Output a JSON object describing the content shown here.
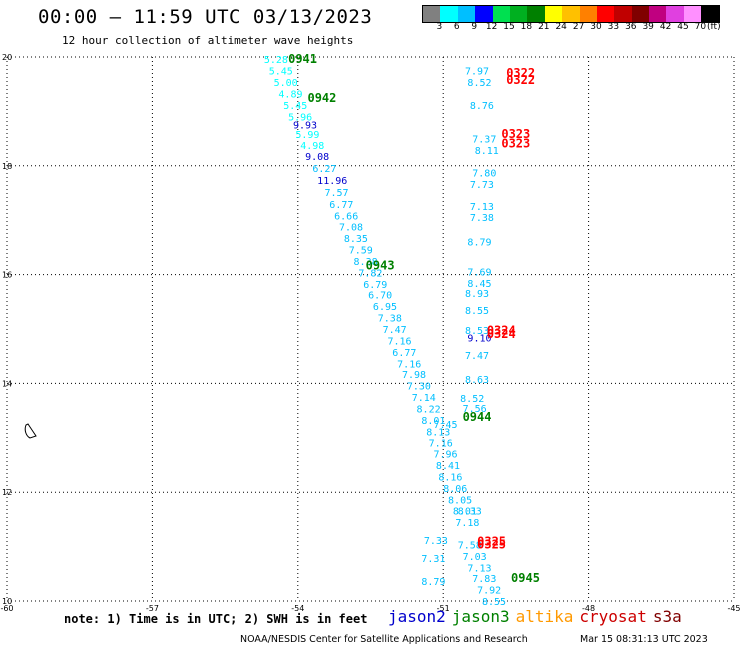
{
  "header": {
    "title": "00:00 – 11:59 UTC 03/13/2023",
    "subtitle": "12 hour collection of altimeter wave heights"
  },
  "color_scale": {
    "colors": [
      "#808080",
      "#00ffff",
      "#00bfff",
      "#0000ff",
      "#00e050",
      "#00b020",
      "#008000",
      "#ffff00",
      "#ffc000",
      "#ff8000",
      "#ff0000",
      "#c00000",
      "#800000",
      "#c00080",
      "#e040e0",
      "#ff90ff",
      "#000000"
    ],
    "labels": [
      "3",
      "6",
      "9",
      "12",
      "15",
      "18",
      "21",
      "24",
      "27",
      "30",
      "33",
      "36",
      "39",
      "42",
      "45",
      "70",
      "(ft)"
    ]
  },
  "chart_data": {
    "type": "scatter",
    "title": "12 hour collection of altimeter wave heights",
    "xlim": [
      -60,
      -45
    ],
    "ylim": [
      10,
      20
    ],
    "x_ticks": [
      "-60",
      "-57",
      "-54",
      "-51",
      "-48",
      "-45"
    ],
    "y_ticks": [
      "20",
      "18",
      "16",
      "14",
      "12",
      "10"
    ],
    "grid": true,
    "unit": "ft",
    "series": [
      {
        "name": "jason2",
        "color": "#00ffff",
        "points": [
          {
            "x": -54.7,
            "y": 19.96,
            "v": "5.28"
          },
          {
            "x": -54.6,
            "y": 19.75,
            "v": "5.45"
          },
          {
            "x": -54.5,
            "y": 19.54,
            "v": "5.00"
          },
          {
            "x": -54.4,
            "y": 19.33,
            "v": "4.89"
          },
          {
            "x": -54.3,
            "y": 19.12,
            "v": "5.45"
          },
          {
            "x": -54.2,
            "y": 18.91,
            "v": "5.96"
          },
          {
            "x": -54.05,
            "y": 18.58,
            "v": "5.99"
          },
          {
            "x": -53.95,
            "y": 18.38,
            "v": "4.98"
          }
        ]
      },
      {
        "name": "jason2-high",
        "color": "#0000cc",
        "points": [
          {
            "x": -54.1,
            "y": 18.76,
            "v": "9.93"
          },
          {
            "x": -53.85,
            "y": 18.18,
            "v": "9.08"
          },
          {
            "x": -53.6,
            "y": 17.74,
            "v": "11.96"
          },
          {
            "x": -50.5,
            "y": 14.84,
            "v": "9.10"
          }
        ]
      },
      {
        "name": "jason3",
        "color": "#00bfff",
        "points": [
          {
            "x": -53.7,
            "y": 17.96,
            "v": "6.27"
          },
          {
            "x": -53.45,
            "y": 17.52,
            "v": "7.57"
          },
          {
            "x": -53.35,
            "y": 17.3,
            "v": "6.77"
          },
          {
            "x": -53.25,
            "y": 17.09,
            "v": "6.66"
          },
          {
            "x": -53.15,
            "y": 16.88,
            "v": "7.08"
          },
          {
            "x": -53.05,
            "y": 16.67,
            "v": "8.35"
          },
          {
            "x": -52.95,
            "y": 16.46,
            "v": "7.59"
          },
          {
            "x": -52.85,
            "y": 16.25,
            "v": "8.38"
          },
          {
            "x": -52.75,
            "y": 16.04,
            "v": "7.82"
          },
          {
            "x": -52.65,
            "y": 15.83,
            "v": "6.79"
          },
          {
            "x": -52.55,
            "y": 15.63,
            "v": "6.70"
          },
          {
            "x": -52.45,
            "y": 15.42,
            "v": "6.95"
          },
          {
            "x": -52.35,
            "y": 15.21,
            "v": "7.38"
          },
          {
            "x": -52.25,
            "y": 15.0,
            "v": "7.47"
          },
          {
            "x": -52.15,
            "y": 14.79,
            "v": "7.16"
          },
          {
            "x": -52.05,
            "y": 14.58,
            "v": "6.77"
          },
          {
            "x": -51.95,
            "y": 14.37,
            "v": "7.16"
          },
          {
            "x": -51.85,
            "y": 14.17,
            "v": "7.98"
          },
          {
            "x": -51.75,
            "y": 13.96,
            "v": "7.30"
          },
          {
            "x": -51.65,
            "y": 13.75,
            "v": "7.14"
          },
          {
            "x": -51.55,
            "y": 13.54,
            "v": "8.22"
          },
          {
            "x": -51.45,
            "y": 13.33,
            "v": "8.01"
          },
          {
            "x": -51.35,
            "y": 13.12,
            "v": "8.13"
          },
          {
            "x": -51.3,
            "y": 12.91,
            "v": "7.16"
          },
          {
            "x": -51.2,
            "y": 12.71,
            "v": "7.96"
          },
          {
            "x": -51.15,
            "y": 12.5,
            "v": "8.41"
          },
          {
            "x": -51.1,
            "y": 12.29,
            "v": "8.16"
          },
          {
            "x": -51.0,
            "y": 12.08,
            "v": "8.06"
          },
          {
            "x": -50.9,
            "y": 11.87,
            "v": "8.05"
          },
          {
            "x": -50.8,
            "y": 11.66,
            "v": "8.01"
          },
          {
            "x": -50.75,
            "y": 11.45,
            "v": "7.18"
          },
          {
            "x": -50.7,
            "y": 11.04,
            "v": "7.58"
          },
          {
            "x": -50.6,
            "y": 10.83,
            "v": "7.03"
          },
          {
            "x": -50.5,
            "y": 10.62,
            "v": "7.13"
          },
          {
            "x": -50.4,
            "y": 10.42,
            "v": "7.83"
          },
          {
            "x": -50.3,
            "y": 10.21,
            "v": "7.92"
          },
          {
            "x": -50.2,
            "y": 10.0,
            "v": "8.55"
          },
          {
            "x": -51.4,
            "y": 11.12,
            "v": "7.33"
          },
          {
            "x": -51.45,
            "y": 10.79,
            "v": "7.31"
          },
          {
            "x": -51.45,
            "y": 10.37,
            "v": "8.79"
          },
          {
            "x": -50.55,
            "y": 19.75,
            "v": "7.97"
          },
          {
            "x": -50.5,
            "y": 19.54,
            "v": "8.52"
          },
          {
            "x": -50.45,
            "y": 19.12,
            "v": "8.76"
          },
          {
            "x": -50.4,
            "y": 18.5,
            "v": "7.37"
          },
          {
            "x": -50.35,
            "y": 18.29,
            "v": "8.11"
          },
          {
            "x": -50.4,
            "y": 17.88,
            "v": "7.80"
          },
          {
            "x": -50.45,
            "y": 17.67,
            "v": "7.73"
          },
          {
            "x": -50.45,
            "y": 17.26,
            "v": "7.13"
          },
          {
            "x": -50.45,
            "y": 17.06,
            "v": "7.38"
          },
          {
            "x": -50.5,
            "y": 16.61,
            "v": "8.79"
          },
          {
            "x": -50.5,
            "y": 16.06,
            "v": "7.69"
          },
          {
            "x": -50.5,
            "y": 15.85,
            "v": "8.45"
          },
          {
            "x": -50.55,
            "y": 15.66,
            "v": "8.93"
          },
          {
            "x": -50.55,
            "y": 15.35,
            "v": "8.55"
          },
          {
            "x": -50.55,
            "y": 14.98,
            "v": "8.53"
          },
          {
            "x": -50.55,
            "y": 14.52,
            "v": "7.47"
          },
          {
            "x": -50.55,
            "y": 14.08,
            "v": "8.63"
          },
          {
            "x": -50.65,
            "y": 13.73,
            "v": "8.52"
          },
          {
            "x": -50.6,
            "y": 13.55,
            "v": "7.56"
          },
          {
            "x": -51.2,
            "y": 13.25,
            "v": "7.45"
          },
          {
            "x": -50.7,
            "y": 11.66,
            "v": "8.33"
          }
        ]
      },
      {
        "name": "pass-labels",
        "color": "#008000",
        "points": [
          {
            "x": -54.2,
            "y": 19.96,
            "v": "0941"
          },
          {
            "x": -53.8,
            "y": 19.25,
            "v": "0942"
          },
          {
            "x": -52.6,
            "y": 16.17,
            "v": "0943"
          },
          {
            "x": -50.6,
            "y": 13.38,
            "v": "0944"
          },
          {
            "x": -49.6,
            "y": 10.42,
            "v": "0945"
          }
        ]
      },
      {
        "name": "pass-labels-cryosat",
        "color": "#ff0000",
        "points": [
          {
            "x": -49.7,
            "y": 19.71,
            "v": "0322"
          },
          {
            "x": -49.7,
            "y": 19.58,
            "v": "0322"
          },
          {
            "x": -49.8,
            "y": 18.58,
            "v": "0323"
          },
          {
            "x": -49.8,
            "y": 18.41,
            "v": "0323"
          },
          {
            "x": -50.1,
            "y": 14.97,
            "v": "0324"
          },
          {
            "x": -50.1,
            "y": 14.91,
            "v": "0324"
          },
          {
            "x": -50.3,
            "y": 11.09,
            "v": "0325"
          },
          {
            "x": -50.3,
            "y": 11.04,
            "v": "0325"
          }
        ]
      }
    ]
  },
  "footer": {
    "note": "note: 1) Time is in UTC; 2) SWH is in feet",
    "satellites": [
      {
        "name": "jason2",
        "color": "#0000cc"
      },
      {
        "name": "jason3",
        "color": "#008000"
      },
      {
        "name": "altika",
        "color": "#ff9900"
      },
      {
        "name": "cryosat",
        "color": "#cc0000"
      },
      {
        "name": "s3a",
        "color": "#800000"
      }
    ],
    "credit": "NOAA/NESDIS Center for Satellite Applications and Research",
    "timestamp": "Mar 15 08:31:13 UTC 2023"
  }
}
